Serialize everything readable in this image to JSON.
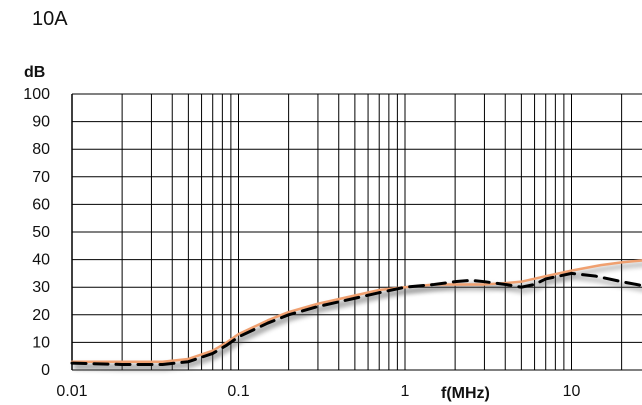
{
  "page_label": "10A",
  "chart_data": {
    "type": "line",
    "title": "",
    "xlabel": "f(MHz)",
    "ylabel": "dB",
    "xscale": "log",
    "xlim": [
      0.01,
      30
    ],
    "ylim": [
      0,
      100
    ],
    "grid": true,
    "legend": "none",
    "x_ticks": [
      {
        "value": 0.01,
        "label": "0.01"
      },
      {
        "value": 0.1,
        "label": "0.1"
      },
      {
        "value": 1,
        "label": "1"
      },
      {
        "value": 10,
        "label": "10"
      }
    ],
    "y_ticks": [
      {
        "value": 0,
        "label": "0"
      },
      {
        "value": 10,
        "label": "10"
      },
      {
        "value": 20,
        "label": "20"
      },
      {
        "value": 30,
        "label": "30"
      },
      {
        "value": 40,
        "label": "40"
      },
      {
        "value": 50,
        "label": "50"
      },
      {
        "value": 60,
        "label": "60"
      },
      {
        "value": 70,
        "label": "70"
      },
      {
        "value": 80,
        "label": "80"
      },
      {
        "value": 90,
        "label": "90"
      },
      {
        "value": 100,
        "label": "100"
      }
    ],
    "series": [
      {
        "style": "solid",
        "color": "#f0a070",
        "points": [
          [
            0.01,
            3
          ],
          [
            0.02,
            3
          ],
          [
            0.035,
            3
          ],
          [
            0.05,
            4
          ],
          [
            0.07,
            7
          ],
          [
            0.085,
            10
          ],
          [
            0.1,
            13
          ],
          [
            0.15,
            18
          ],
          [
            0.2,
            21
          ],
          [
            0.3,
            24
          ],
          [
            0.5,
            27
          ],
          [
            0.7,
            29
          ],
          [
            1,
            30
          ],
          [
            1.5,
            31
          ],
          [
            2,
            31
          ],
          [
            3,
            31
          ],
          [
            4,
            31.5
          ],
          [
            5,
            32
          ],
          [
            7,
            34
          ],
          [
            10,
            36
          ],
          [
            15,
            38
          ],
          [
            20,
            39
          ],
          [
            30,
            40
          ]
        ]
      },
      {
        "style": "dashed",
        "color": "#000000",
        "points": [
          [
            0.01,
            2.5
          ],
          [
            0.02,
            2
          ],
          [
            0.035,
            2
          ],
          [
            0.05,
            3
          ],
          [
            0.07,
            6
          ],
          [
            0.085,
            9
          ],
          [
            0.1,
            12
          ],
          [
            0.15,
            17
          ],
          [
            0.2,
            20
          ],
          [
            0.3,
            23
          ],
          [
            0.5,
            26
          ],
          [
            0.7,
            28
          ],
          [
            1,
            30
          ],
          [
            1.5,
            31
          ],
          [
            2,
            32
          ],
          [
            2.5,
            32.5
          ],
          [
            3,
            32
          ],
          [
            4,
            31
          ],
          [
            5,
            30
          ],
          [
            6,
            31
          ],
          [
            7,
            33
          ],
          [
            10,
            35
          ],
          [
            14,
            34
          ],
          [
            20,
            32
          ],
          [
            30,
            30
          ]
        ]
      }
    ]
  }
}
